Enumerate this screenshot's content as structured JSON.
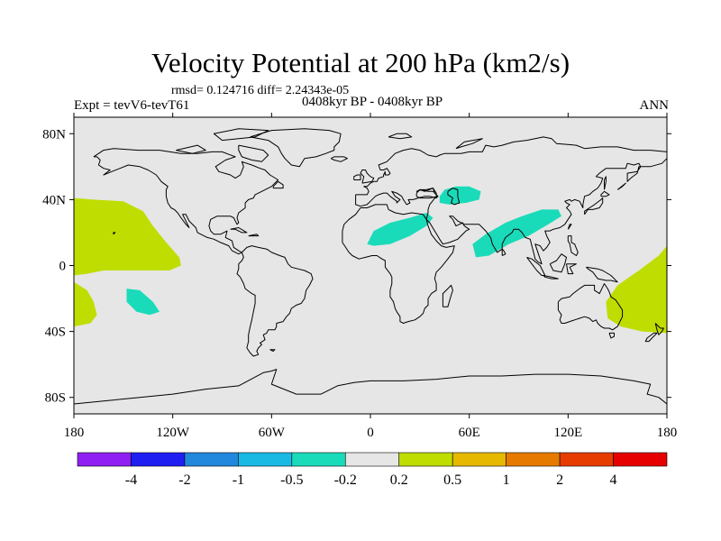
{
  "title": "Velocity Potential at 200 hPa (km2/s)",
  "stats": "rmsd= 0.124716 diff= 2.24343e-05",
  "subtitle": "0408kyr BP - 0408kyr BP",
  "left_label": "Expt = tevV6-tevT61",
  "right_label": "ANN",
  "map": {
    "projection": "cylindrical equidistant",
    "lon_range": [
      -180,
      180
    ],
    "lat_range": [
      -90,
      90
    ],
    "background_color": "#e6e6e6",
    "coastline_color": "#000000",
    "x_ticks": [
      {
        "value": -180,
        "label": "180"
      },
      {
        "value": -120,
        "label": "120W"
      },
      {
        "value": -60,
        "label": "60W"
      },
      {
        "value": 0,
        "label": "0"
      },
      {
        "value": 60,
        "label": "60E"
      },
      {
        "value": 120,
        "label": "120E"
      },
      {
        "value": 180,
        "label": "180"
      }
    ],
    "y_ticks": [
      {
        "value": 80,
        "label": "80N"
      },
      {
        "value": 40,
        "label": "40N"
      },
      {
        "value": 0,
        "label": "0"
      },
      {
        "value": -40,
        "label": "40S"
      },
      {
        "value": -80,
        "label": "80S"
      }
    ],
    "anomaly_regions": [
      {
        "name": "central-pacific-north-positive",
        "level": "0.2 to 0.5",
        "color": "#bfdd00",
        "polygon": [
          [
            -180,
            41
          ],
          [
            -168,
            40
          ],
          [
            -150,
            39
          ],
          [
            -138,
            33
          ],
          [
            -132,
            24
          ],
          [
            -124,
            14
          ],
          [
            -116,
            5
          ],
          [
            -115,
            0
          ],
          [
            -122,
            -3
          ],
          [
            -140,
            -3
          ],
          [
            -162,
            -3
          ],
          [
            -172,
            -5
          ],
          [
            -180,
            -6
          ]
        ]
      },
      {
        "name": "south-pacific-west-positive",
        "level": "0.2 to 0.5",
        "color": "#bfdd00",
        "polygon": [
          [
            -180,
            -10
          ],
          [
            -172,
            -15
          ],
          [
            -168,
            -22
          ],
          [
            -166,
            -30
          ],
          [
            -170,
            -35
          ],
          [
            -180,
            -37
          ]
        ]
      },
      {
        "name": "australia-southwest-pacific-positive",
        "level": "0.2 to 0.5",
        "color": "#bfdd00",
        "polygon": [
          [
            180,
            12
          ],
          [
            175,
            6
          ],
          [
            163,
            -3
          ],
          [
            150,
            -12
          ],
          [
            143,
            -22
          ],
          [
            144,
            -32
          ],
          [
            152,
            -37
          ],
          [
            165,
            -40
          ],
          [
            180,
            -41
          ]
        ]
      },
      {
        "name": "south-pacific-negative",
        "level": "-0.5 to -0.2",
        "color": "#1adbb9",
        "polygon": [
          [
            -148,
            -14
          ],
          [
            -140,
            -15
          ],
          [
            -132,
            -22
          ],
          [
            -128,
            -28
          ],
          [
            -134,
            -30
          ],
          [
            -142,
            -28
          ],
          [
            -148,
            -22
          ]
        ]
      },
      {
        "name": "north-africa-negative",
        "level": "-0.5 to -0.2",
        "color": "#1adbb9",
        "polygon": [
          [
            -2,
            13
          ],
          [
            2,
            21
          ],
          [
            12,
            26
          ],
          [
            24,
            29
          ],
          [
            34,
            32
          ],
          [
            38,
            29
          ],
          [
            34,
            24
          ],
          [
            24,
            18
          ],
          [
            12,
            13
          ],
          [
            2,
            12
          ]
        ]
      },
      {
        "name": "caspian-region-negative",
        "level": "-0.5 to -0.2",
        "color": "#1adbb9",
        "polygon": [
          [
            42,
            42
          ],
          [
            45,
            46
          ],
          [
            52,
            48
          ],
          [
            60,
            48
          ],
          [
            67,
            45
          ],
          [
            66,
            40
          ],
          [
            58,
            38
          ],
          [
            48,
            37
          ],
          [
            42,
            38
          ]
        ]
      },
      {
        "name": "south-asia-negative",
        "level": "-0.5 to -0.2",
        "color": "#1adbb9",
        "polygon": [
          [
            62,
            13
          ],
          [
            70,
            19
          ],
          [
            82,
            26
          ],
          [
            92,
            30
          ],
          [
            104,
            34
          ],
          [
            114,
            34
          ],
          [
            116,
            30
          ],
          [
            108,
            25
          ],
          [
            96,
            18
          ],
          [
            84,
            13
          ],
          [
            72,
            6
          ],
          [
            64,
            5
          ]
        ]
      }
    ]
  },
  "colorbar": {
    "colors": [
      "#8f1ff2",
      "#1f1ff2",
      "#2288dd",
      "#1ab9e4",
      "#1adbb9",
      "#e6e6e6",
      "#bfdd00",
      "#e6b800",
      "#e67a00",
      "#e63c00",
      "#e60000"
    ],
    "labels": [
      "-4",
      "-2",
      "-1",
      "-0.5",
      "-0.2",
      "0.2",
      "0.5",
      "1",
      "2",
      "4"
    ]
  }
}
